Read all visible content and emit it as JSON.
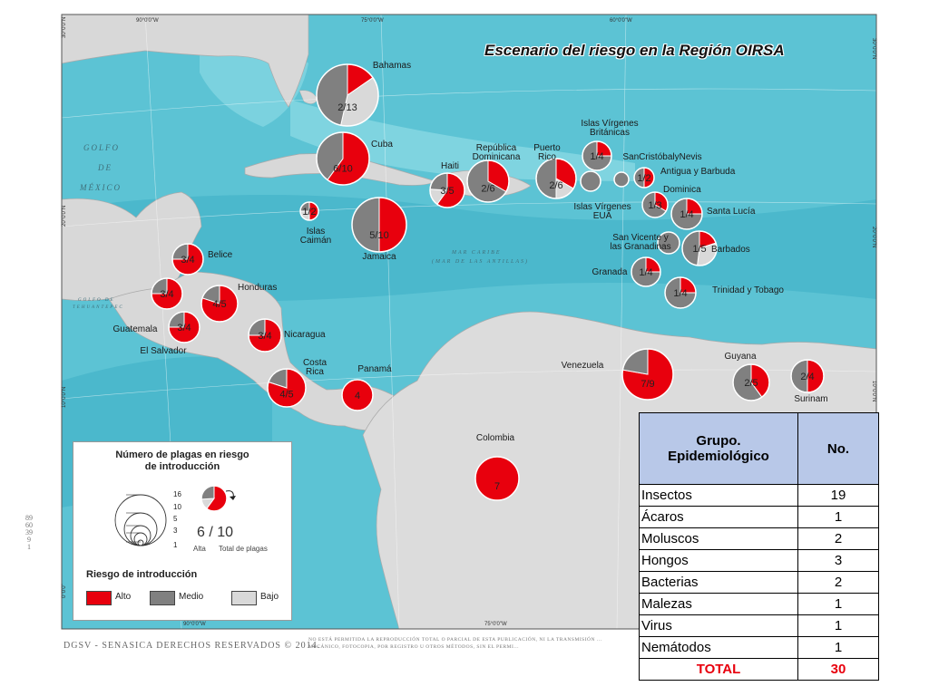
{
  "title": "Escenario del riesgo en la Región OIRSA",
  "copyright": "DGSV - SENASICA DERECHOS RESERVADOS © 2014.",
  "notice": "NO ESTÁ PERMITIDA LA REPRODUCCIÓN TOTAL O PARCIAL DE ESTA PUBLICACIÓN, NI LA TRANSMISIÓN ... MECÁNICO, FOTOCOPIA, POR REGISTRO U OTROS MÉTODOS, SIN EL PERMI...",
  "side_code": [
    "89",
    "60",
    "39",
    "9",
    "1"
  ],
  "coords": {
    "top": [
      "90°0'0\"W",
      "75°0'0\"W",
      "60°0'0\"W"
    ],
    "bottom": [
      "90°0'0\"W",
      "75°0'0\"W"
    ],
    "left": [
      "30°0'0\"N",
      "20°0'0\"N",
      "10°0'0\"N",
      "0°0'0\""
    ],
    "right": [
      "30°0'0\"N",
      "20°0'0\"N",
      "10°0'0\"N"
    ]
  },
  "sea_labels": {
    "gulf": [
      "GOLFO",
      "DE",
      "MÉXICO"
    ],
    "caribbean": [
      "MAR CARIBE",
      "(MAR DE LAS ANTILLAS)"
    ],
    "tehuantepec": [
      "GOLFO DE",
      "TEHUANTEPEC"
    ]
  },
  "colors": {
    "alto": "#e8000d",
    "medio": "#808080",
    "bajo": "#d9d9d9",
    "sea": "#5cc3d4",
    "land": "#d8d8d8",
    "header": "#b8c8e8"
  },
  "pies": [
    {
      "name": "Bahamas",
      "label": "2/13",
      "alto": 2,
      "total": 13,
      "bajo_share": 0.45
    },
    {
      "name": "Cuba",
      "label": "6/10",
      "alto": 6,
      "total": 10,
      "bajo_share": 0
    },
    {
      "name": "Islas\nCaimán",
      "label": "1/2",
      "alto": 1,
      "total": 2,
      "bajo_share": 0.5
    },
    {
      "name": "Jamaica",
      "label": "5/10",
      "alto": 5,
      "total": 10,
      "bajo_share": 0
    },
    {
      "name": "Haiti",
      "label": "3/5",
      "alto": 3,
      "total": 5,
      "bajo_share": 0.4
    },
    {
      "name": "República\nDominicana",
      "label": "2/6",
      "alto": 2,
      "total": 6,
      "bajo_share": 0
    },
    {
      "name": "Puerto\nRico",
      "label": "2/6",
      "alto": 2,
      "total": 6,
      "bajo_share": 0.25
    },
    {
      "name": "Islas Vírgenes\nBritánicas",
      "label": "1/4",
      "alto": 1,
      "total": 4,
      "bajo_share": 0
    },
    {
      "name": "Islas Vírgenes\nEUA",
      "label": "",
      "alto": 0,
      "total": 1,
      "bajo_share": 0
    },
    {
      "name": "SanCristóbalyNevis",
      "label": "",
      "alto": 0,
      "total": 1,
      "bajo_share": 0
    },
    {
      "name": "Antigua y Barbuda",
      "label": "1/2",
      "alto": 1,
      "total": 2,
      "bajo_share": 0
    },
    {
      "name": "Dominica",
      "label": "1/3",
      "alto": 1,
      "total": 3,
      "bajo_share": 0
    },
    {
      "name": "Santa Lucía",
      "label": "1/4",
      "alto": 1,
      "total": 4,
      "bajo_share": 0
    },
    {
      "name": "San Vicente y\nlas Granadinas",
      "label": "",
      "alto": 0,
      "total": 1,
      "bajo_share": 0
    },
    {
      "name": "Barbados",
      "label": "1/5",
      "alto": 1,
      "total": 5,
      "bajo_share": 0.4
    },
    {
      "name": "Granada",
      "label": "1/4",
      "alto": 1,
      "total": 4,
      "bajo_share": 0
    },
    {
      "name": "Trinidad y Tobago",
      "label": "1/4",
      "alto": 1,
      "total": 4,
      "bajo_share": 0
    },
    {
      "name": "Belice",
      "label": "3/4",
      "alto": 3,
      "total": 4,
      "bajo_share": 0
    },
    {
      "name": "",
      "label": "3/4",
      "alto": 3,
      "total": 4,
      "bajo_share": 0
    },
    {
      "name": "Guatemala",
      "label": "",
      "alto": 0,
      "total": 0,
      "bajo_share": 0
    },
    {
      "name": "Honduras",
      "label": "4/5",
      "alto": 4,
      "total": 5,
      "bajo_share": 0
    },
    {
      "name": "El Salvador",
      "label": "3/4",
      "alto": 3,
      "total": 4,
      "bajo_share": 0
    },
    {
      "name": "Nicaragua",
      "label": "3/4",
      "alto": 3,
      "total": 4,
      "bajo_share": 0
    },
    {
      "name": "Costa\nRica",
      "label": "4/5",
      "alto": 4,
      "total": 5,
      "bajo_share": 0
    },
    {
      "name": "Panamá",
      "label": "4",
      "alto": 4,
      "total": 4,
      "bajo_share": 0
    },
    {
      "name": "Venezuela",
      "label": "7/9",
      "alto": 7,
      "total": 9,
      "bajo_share": 0
    },
    {
      "name": "Guyana",
      "label": "2/5",
      "alto": 2,
      "total": 5,
      "bajo_share": 0
    },
    {
      "name": "Surinam",
      "label": "2/4",
      "alto": 2,
      "total": 4,
      "bajo_share": 0
    },
    {
      "name": "Colombia",
      "label": "7",
      "alto": 7,
      "total": 7,
      "bajo_share": 0
    }
  ],
  "legend": {
    "title": [
      "Número de plagas en riesgo",
      "de introducción"
    ],
    "sizes": [
      "16",
      "10",
      "5",
      "3",
      "1"
    ],
    "example": "6 / 10",
    "example_alto": "Alta",
    "example_total": "Total de plagas",
    "risk_title": "Riesgo de introducción",
    "alto": "Alto",
    "medio": "Medio",
    "bajo": "Bajo"
  },
  "table": {
    "header": [
      "Grupo.",
      "Epidemiológico"
    ],
    "header_no": "No.",
    "rows": [
      {
        "group": "Insectos",
        "no": "19"
      },
      {
        "group": "Ácaros",
        "no": "1"
      },
      {
        "group": "Moluscos",
        "no": "2"
      },
      {
        "group": "Hongos",
        "no": "3"
      },
      {
        "group": "Bacterias",
        "no": "2"
      },
      {
        "group": "Malezas",
        "no": "1"
      },
      {
        "group": "Virus",
        "no": "1"
      },
      {
        "group": "Nemátodos",
        "no": "1"
      }
    ],
    "total_label": "TOTAL",
    "total_no": "30"
  }
}
